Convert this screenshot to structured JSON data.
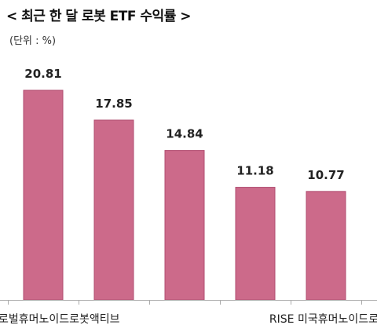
{
  "chart_data": {
    "type": "bar",
    "title": "< 최근 한 달 로봇 ETF 수익률 >",
    "unit_label": "(단위 : %)",
    "categories": [
      "로벌휴머노이드로봇액티브",
      "",
      "",
      "",
      "RISE 미국휴머노이드로"
    ],
    "values": [
      20.81,
      17.85,
      14.84,
      11.18,
      10.77
    ],
    "value_labels": [
      "20.81",
      "17.85",
      "14.84",
      "11.18",
      "10.77"
    ],
    "ylim": [
      0,
      22
    ],
    "grid": false,
    "legend": "none",
    "bar_color": "#cc6a8a",
    "bar_edge_color": "#b04d70",
    "axis_color": "#aaaaaa"
  }
}
